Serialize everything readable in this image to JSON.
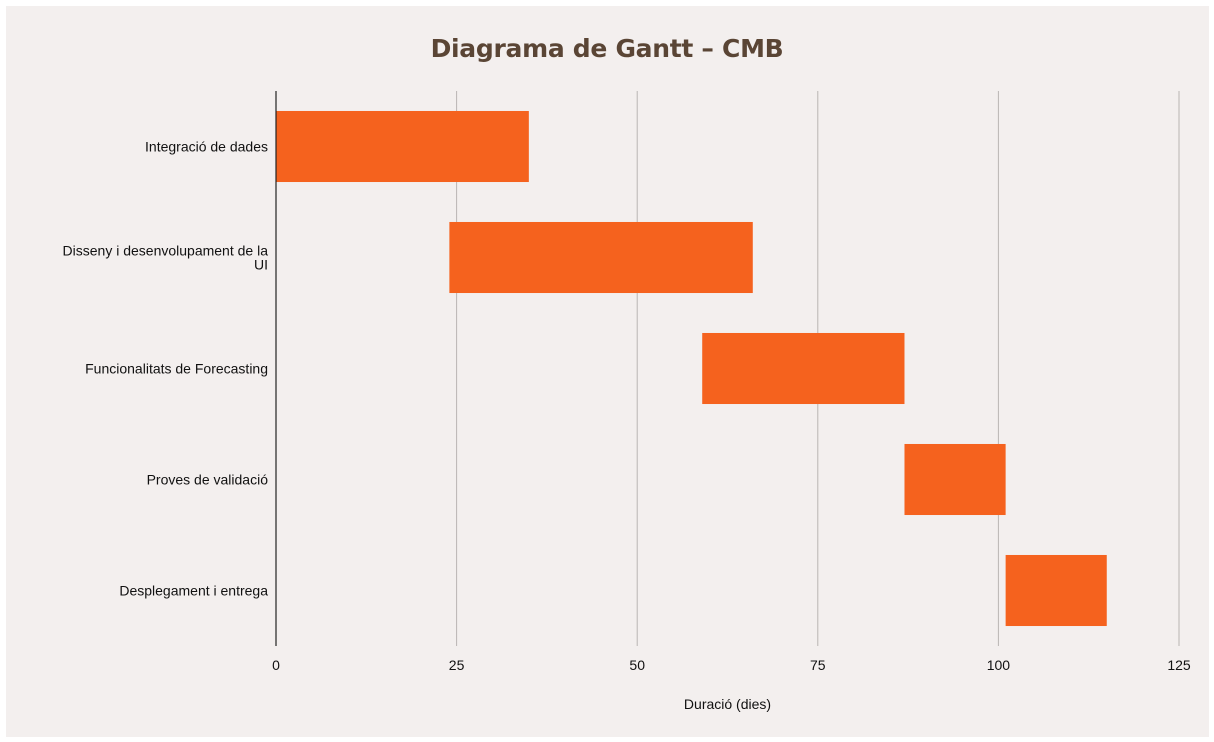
{
  "chart_data": {
    "type": "bar",
    "orientation": "horizontal-gantt",
    "title": "Diagrama de Gantt – CMB",
    "xlabel": "Duració (dies)",
    "ylabel": "",
    "xlim": [
      0,
      125
    ],
    "xticks": [
      0,
      25,
      50,
      75,
      100,
      125
    ],
    "grid": "vertical",
    "bar_color": "#f5621e",
    "tasks": [
      {
        "label_lines": [
          "Integració de dades"
        ],
        "start": 0,
        "end": 35
      },
      {
        "label_lines": [
          "Disseny i desenvolupament de la",
          "UI"
        ],
        "start": 24,
        "end": 66
      },
      {
        "label_lines": [
          "Funcionalitats de Forecasting"
        ],
        "start": 59,
        "end": 87
      },
      {
        "label_lines": [
          "Proves de validació"
        ],
        "start": 87,
        "end": 101
      },
      {
        "label_lines": [
          "Desplegament i entrega"
        ],
        "start": 101,
        "end": 115
      }
    ]
  }
}
